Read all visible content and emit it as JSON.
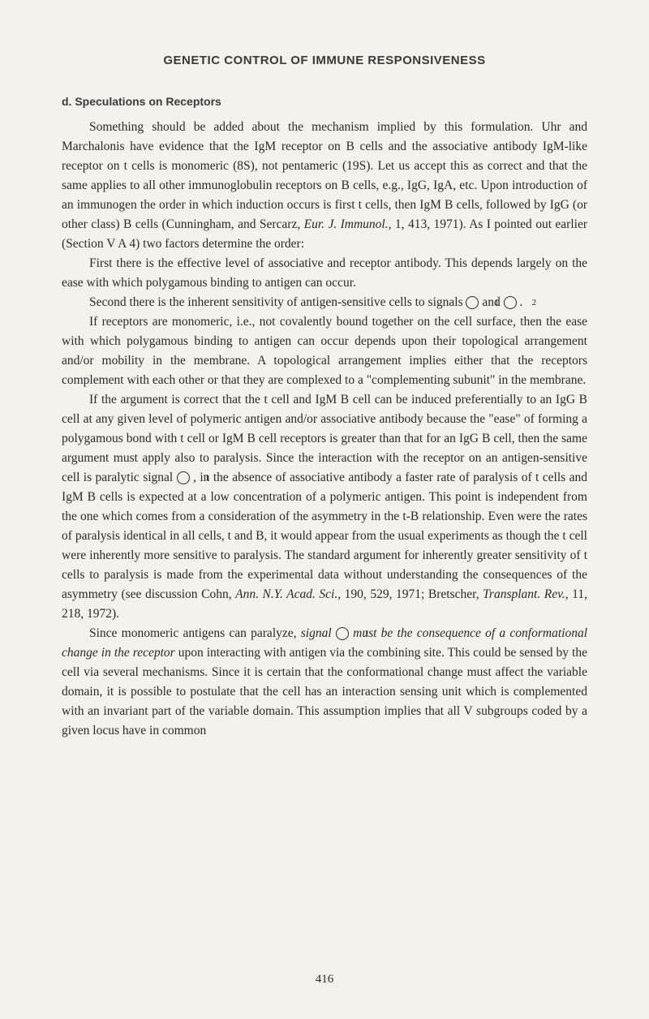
{
  "header": "GENETIC CONTROL OF IMMUNE RESPONSIVENESS",
  "subheading": "d. Speculations on Receptors",
  "p1a": "Something should be added about the mechanism implied by this formula­tion. Uhr and Marchalonis have evidence that the IgM receptor on B cells and the associative antibody IgM-like receptor on t cells is monomeric (8S), not penta­meric (19S). Let us accept this as correct and that the same applies to all other immunoglobulin receptors on B cells, e.g., IgG, IgA, etc. Upon introduction of an immunogen the order in which induction occurs is first t cells, then IgM B cells, followed by IgG (or other class) B cells (Cunningham, and Sercarz, ",
  "p1b": "Eur. J. Immunol.,",
  "p1c": " 1, 413, 1971). As I pointed out earlier (Section V A 4) two factors determine the order:",
  "p2": "First there is the effective level of associative and receptor antibody. This depends largely on the ease with which polygamous binding to antigen can occur.",
  "p3a": "Second there is the inherent sensitivity of antigen-sensitive cells to signals ",
  "p3b": " and ",
  "p3c": " .",
  "p4": "If receptors are monomeric, i.e., not covalently bound together on the cell surface, then the ease with which polygamous binding to antigen can occur depends upon their topological arrangement and/or mobility in the membrane. A topological arrangement implies either that the receptors complement with each other or that they are complexed to a \"complementing subunit\" in the membrane.",
  "p5a": "If the argument is correct that the t cell and IgM B cell can be induced preferentially to an IgG B cell at any given level of polymeric antigen and/or associative antibody because the \"ease\" of forming a polygamous bond with t cell or IgM B cell receptors is greater than that for an IgG B cell, then the same argument must apply also to paralysis. Since the interaction with the receptor on an antigen-sensitive cell is paralytic signal ",
  "p5b": " , in the absence of associative antibody a faster rate of paralysis of t cells and IgM B cells is expected at a low concentration of a polymeric antigen. This point is independent from the one which comes from a consideration of the asymmetry in the t-B relationship. Even were the rates of paralysis identical in all cells, t and B, it would appear from the usual experiments as though the t cell were inherently more sensitive to paralysis. The standard argument for inherently greater sensitivity of t cells to paralysis is made from the experimental data without understanding the conse­quences of the asymmetry (see discussion Cohn, ",
  "p5c": "Ann. N.Y. Acad. Sci.,",
  "p5d": " 190, 529, 1971; Bretscher, ",
  "p5e": "Transplant. Rev.,",
  "p5f": " 11, 218, 1972).",
  "p6a": "Since monomeric antigens can paralyze, ",
  "p6b": "signal",
  "p6c": " ",
  "p6d": " must be the conse­quence of a conformational change in the receptor",
  "p6e": " upon interacting with antigen via the combining site. This could be sensed by the cell via several mechanisms. Since it is certain that the conformational change must affect the variable domain, it is possible to postulate that the cell has an interaction sensing unit which is complemented with an invariant part of the variable domain. This assumption implies that all V subgroups coded by a given locus have in common",
  "circled1": "1",
  "circled2": "2",
  "pageNumber": "416"
}
